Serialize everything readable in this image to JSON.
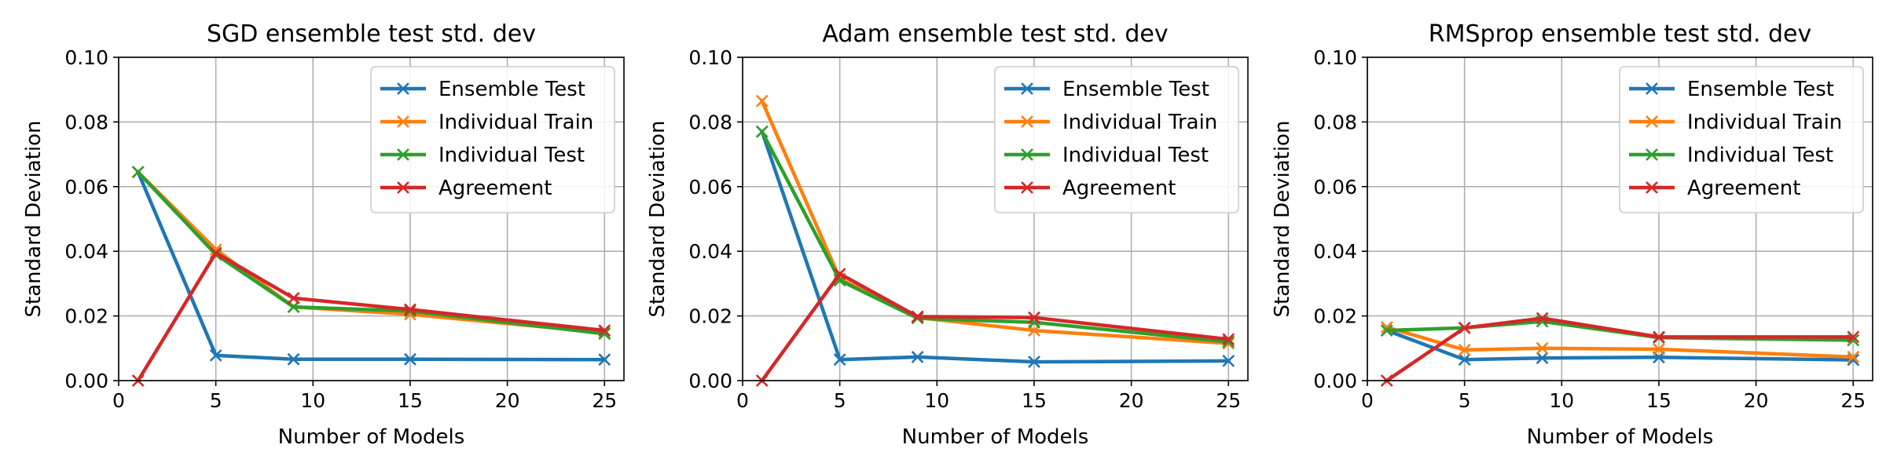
{
  "colors": {
    "ensemble_test": "#1f77b4",
    "individual_train": "#ff7f0e",
    "individual_test": "#2ca02c",
    "agreement": "#d62728"
  },
  "chart_data": [
    {
      "type": "line",
      "title": "SGD ensemble test std. dev",
      "xlabel": "Number of Models",
      "ylabel": "Standard Deviation",
      "x": [
        1,
        5,
        9,
        15,
        25
      ],
      "xlim": [
        0,
        26
      ],
      "ylim": [
        0,
        0.1
      ],
      "xticks": [
        "0",
        "5",
        "10",
        "15",
        "20",
        "25"
      ],
      "yticks": [
        "0.00",
        "0.02",
        "0.04",
        "0.06",
        "0.08",
        "0.10"
      ],
      "grid": true,
      "legend_position": "top-right",
      "marker": "x",
      "series": [
        {
          "name": "Ensemble Test",
          "color": "#1f77b4",
          "values": [
            0.0645,
            0.0078,
            0.0066,
            0.0066,
            0.0065
          ]
        },
        {
          "name": "Individual Train",
          "color": "#ff7f0e",
          "values": [
            0.0645,
            0.0405,
            0.0228,
            0.0205,
            0.0148
          ]
        },
        {
          "name": "Individual Test",
          "color": "#2ca02c",
          "values": [
            0.0645,
            0.039,
            0.0228,
            0.0215,
            0.0145
          ]
        },
        {
          "name": "Agreement",
          "color": "#d62728",
          "values": [
            0.0,
            0.0395,
            0.0255,
            0.022,
            0.0155
          ]
        }
      ]
    },
    {
      "type": "line",
      "title": "Adam ensemble test std. dev",
      "xlabel": "Number of Models",
      "ylabel": "Standard Deviation",
      "x": [
        1,
        5,
        9,
        15,
        25
      ],
      "xlim": [
        0,
        26
      ],
      "ylim": [
        0,
        0.1
      ],
      "xticks": [
        "0",
        "5",
        "10",
        "15",
        "20",
        "25"
      ],
      "yticks": [
        "0.00",
        "0.02",
        "0.04",
        "0.06",
        "0.08",
        "0.10"
      ],
      "grid": true,
      "legend_position": "top-right",
      "marker": "x",
      "series": [
        {
          "name": "Ensemble Test",
          "color": "#1f77b4",
          "values": [
            0.077,
            0.0065,
            0.0073,
            0.0058,
            0.0061
          ]
        },
        {
          "name": "Individual Train",
          "color": "#ff7f0e",
          "values": [
            0.0865,
            0.0315,
            0.0195,
            0.0155,
            0.0115
          ]
        },
        {
          "name": "Individual Test",
          "color": "#2ca02c",
          "values": [
            0.077,
            0.031,
            0.0193,
            0.018,
            0.012
          ]
        },
        {
          "name": "Agreement",
          "color": "#d62728",
          "values": [
            0.0,
            0.033,
            0.0198,
            0.0195,
            0.0128
          ]
        }
      ]
    },
    {
      "type": "line",
      "title": "RMSprop ensemble test std. dev",
      "xlabel": "Number of Models",
      "ylabel": "Standard Deviation",
      "x": [
        1,
        5,
        9,
        15,
        25
      ],
      "xlim": [
        0,
        26
      ],
      "ylim": [
        0,
        0.1
      ],
      "xticks": [
        "0",
        "5",
        "10",
        "15",
        "20",
        "25"
      ],
      "yticks": [
        "0.00",
        "0.02",
        "0.04",
        "0.06",
        "0.08",
        "0.10"
      ],
      "grid": true,
      "legend_position": "top-right",
      "marker": "x",
      "series": [
        {
          "name": "Ensemble Test",
          "color": "#1f77b4",
          "values": [
            0.0155,
            0.0065,
            0.007,
            0.0072,
            0.0064
          ]
        },
        {
          "name": "Individual Train",
          "color": "#ff7f0e",
          "values": [
            0.0165,
            0.0095,
            0.01,
            0.0097,
            0.0073
          ]
        },
        {
          "name": "Individual Test",
          "color": "#2ca02c",
          "values": [
            0.0155,
            0.0163,
            0.0183,
            0.0133,
            0.0125
          ]
        },
        {
          "name": "Agreement",
          "color": "#d62728",
          "values": [
            0.0,
            0.0163,
            0.0193,
            0.0135,
            0.0135
          ]
        }
      ]
    }
  ]
}
